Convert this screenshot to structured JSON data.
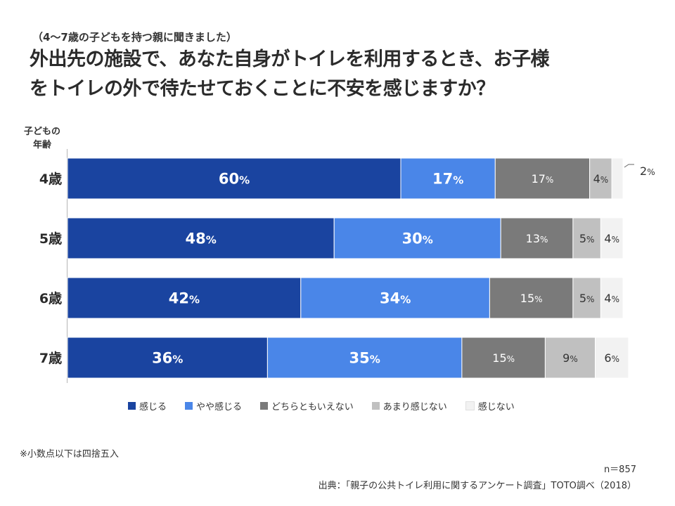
{
  "header": {
    "subtitle": "（4〜7歳の子どもを持つ親に聞きました）",
    "title_line1": "外出先の施設で、あなた自身がトイレを利用するとき、お子様",
    "title_line2": "をトイレの外で待たせておくことに不安を感じますか？"
  },
  "axis_header": {
    "line1": "子どもの",
    "line2": "年齢"
  },
  "chart_data": {
    "type": "bar",
    "orientation": "horizontal",
    "stacked": true,
    "categories": [
      "4歳",
      "5歳",
      "6歳",
      "7歳"
    ],
    "series": [
      {
        "name": "感じる",
        "color": "#1a44a0",
        "values": [
          60,
          48,
          42,
          36
        ]
      },
      {
        "name": "やや感じる",
        "color": "#4a86e8",
        "values": [
          17,
          30,
          34,
          35
        ]
      },
      {
        "name": "どちらともいえない",
        "color": "#7a7a7a",
        "values": [
          17,
          13,
          15,
          15
        ]
      },
      {
        "name": "あまり感じない",
        "color": "#c0c0c0",
        "values": [
          4,
          5,
          5,
          9
        ]
      },
      {
        "name": "感じない",
        "color": "#f2f2f2",
        "values": [
          2,
          4,
          4,
          6
        ]
      }
    ],
    "unit": "%",
    "xlim": [
      0,
      100
    ],
    "legend": "bottom",
    "grid": false
  },
  "footer": {
    "note": "※小数点以下は四捨五入",
    "sample": "n＝857",
    "source": "出典：「親子の公共トイレ利用に関するアンケート調査」TOTO調べ（2018）"
  }
}
